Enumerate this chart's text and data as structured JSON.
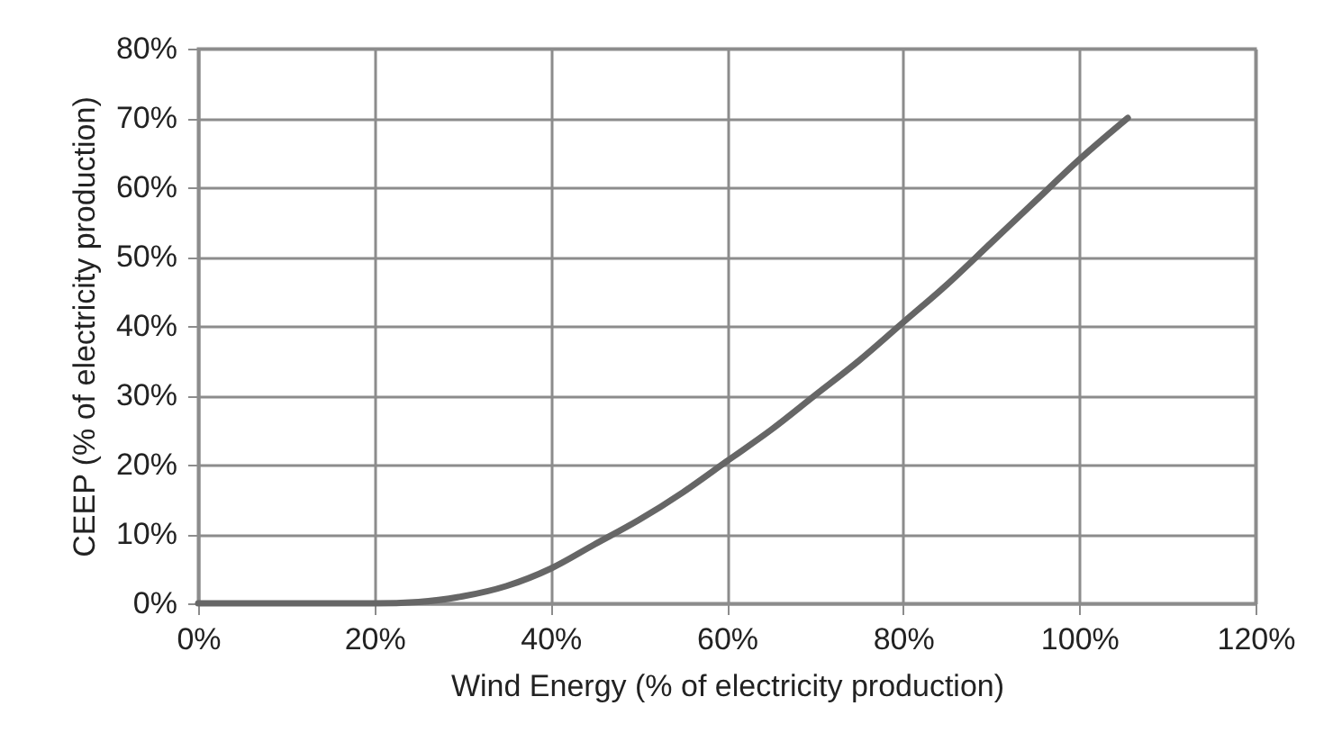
{
  "chart_data": {
    "type": "line",
    "xlabel": "Wind Energy (% of electricity production)",
    "ylabel": "CEEP (% of electricity production)",
    "x": [
      0,
      10,
      20,
      25,
      30,
      35,
      40,
      45,
      50,
      55,
      60,
      65,
      70,
      75,
      80,
      85,
      90,
      95,
      100,
      105.5
    ],
    "series": [
      {
        "color": "#666666",
        "values": [
          0,
          0,
          0,
          0.2,
          1,
          2.5,
          5,
          8.5,
          12,
          16,
          20.5,
          25,
          30,
          35,
          40.5,
          46,
          52,
          58,
          64,
          70
        ]
      }
    ],
    "xlim": [
      0,
      120
    ],
    "ylim": [
      0,
      80
    ],
    "xticks": [
      {
        "value": 0,
        "label": "0%"
      },
      {
        "value": 20,
        "label": "20%"
      },
      {
        "value": 40,
        "label": "40%"
      },
      {
        "value": 60,
        "label": "60%"
      },
      {
        "value": 80,
        "label": "80%"
      },
      {
        "value": 100,
        "label": "100%"
      },
      {
        "value": 120,
        "label": "120%"
      }
    ],
    "yticks": [
      {
        "value": 0,
        "label": "0%"
      },
      {
        "value": 10,
        "label": "10%"
      },
      {
        "value": 20,
        "label": "20%"
      },
      {
        "value": 30,
        "label": "30%"
      },
      {
        "value": 40,
        "label": "40%"
      },
      {
        "value": 50,
        "label": "50%"
      },
      {
        "value": 60,
        "label": "60%"
      },
      {
        "value": 70,
        "label": "70%"
      },
      {
        "value": 80,
        "label": "80%"
      }
    ],
    "grid": true,
    "marker": "none",
    "line_style": "solid"
  }
}
